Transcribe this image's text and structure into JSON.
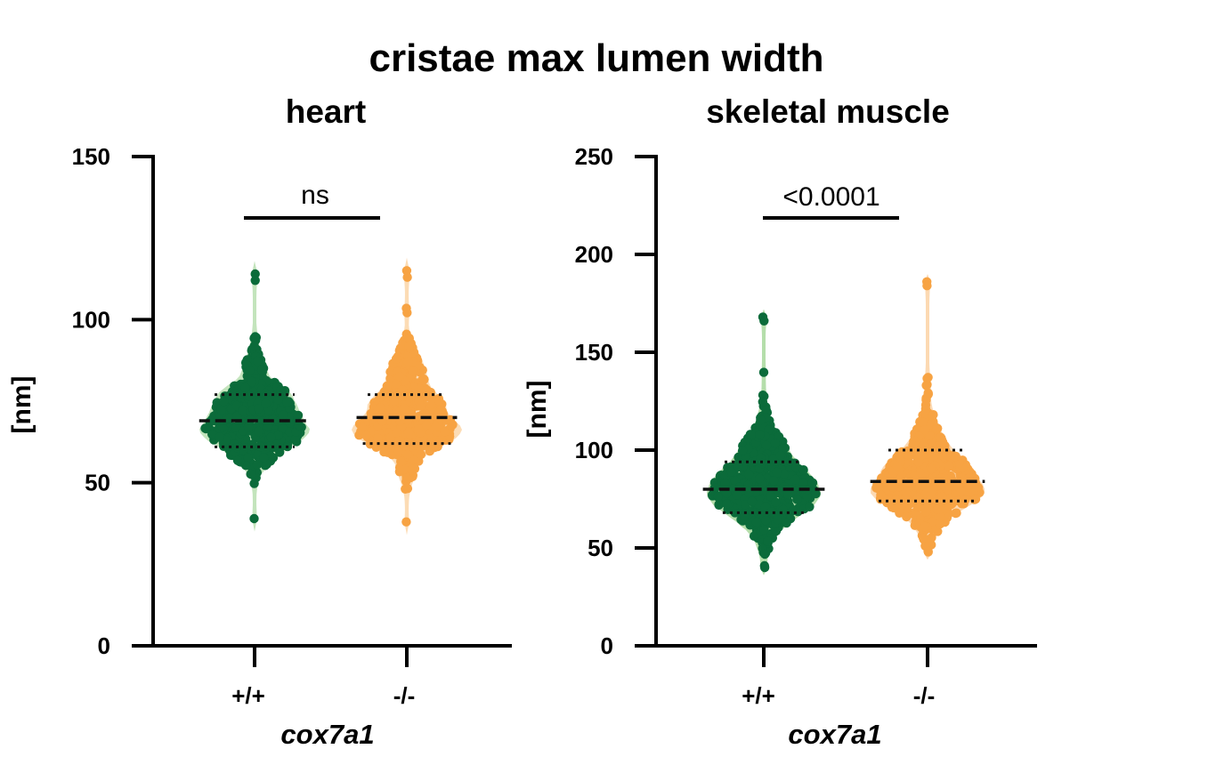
{
  "figure": {
    "title": "cristae max  lumen width"
  },
  "chart_data": [
    {
      "type": "violin-scatter",
      "title": "heart",
      "ylabel": "[nm]",
      "xlabel": "cox7a1",
      "ylim": [
        0,
        150
      ],
      "yticks": [
        0,
        50,
        100,
        150
      ],
      "categories": [
        "+/+",
        "-/-"
      ],
      "significance": "ns",
      "grid": false,
      "series": [
        {
          "name": "+/+",
          "color": "#0b6b3a",
          "violin_color": "#b9dfb0",
          "median": 69,
          "q1": 61,
          "q3": 77,
          "min": 39,
          "max": 114,
          "mean_approx": 69,
          "spread": 7,
          "n": 520
        },
        {
          "name": "-/-",
          "color": "#f7a343",
          "violin_color": "#fbd6a8",
          "median": 70,
          "q1": 62,
          "q3": 77,
          "min": 38,
          "max": 115,
          "mean_approx": 70,
          "spread": 8,
          "n": 540
        }
      ]
    },
    {
      "type": "violin-scatter",
      "title": "skeletal muscle",
      "ylabel": "[nm]",
      "xlabel": "cox7a1",
      "ylim": [
        0,
        250
      ],
      "yticks": [
        0,
        50,
        100,
        150,
        200,
        250
      ],
      "categories": [
        "+/+",
        "-/-"
      ],
      "significance": "<0.0001",
      "grid": false,
      "series": [
        {
          "name": "+/+",
          "color": "#0b6b3a",
          "violin_color": "#a8d89c",
          "median": 80,
          "q1": 68,
          "q3": 94,
          "min": 40,
          "max": 168,
          "mean_approx": 80,
          "spread": 12,
          "n": 620
        },
        {
          "name": "-/-",
          "color": "#f7a343",
          "violin_color": "#fbd2a4",
          "median": 84,
          "q1": 74,
          "q3": 100,
          "min": 48,
          "max": 186,
          "mean_approx": 84,
          "spread": 12,
          "n": 640
        }
      ]
    }
  ]
}
